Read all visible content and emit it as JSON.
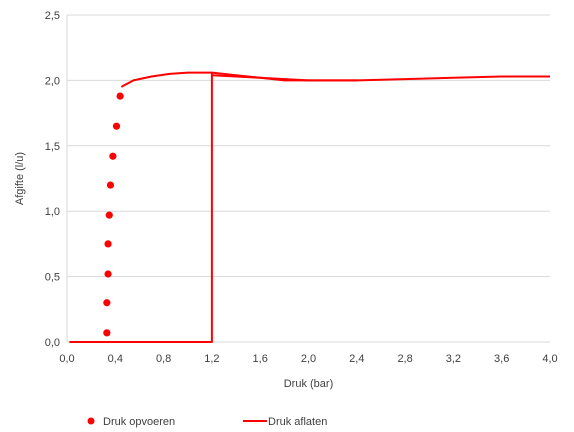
{
  "chart_data": {
    "type": "scatter",
    "xlabel": "Druk (bar)",
    "ylabel": "Afgifte (l/u)",
    "xlim": [
      0,
      4.0
    ],
    "ylim": [
      0,
      2.5
    ],
    "x_ticks": [
      "0,0",
      "0,4",
      "0,8",
      "1,2",
      "1,6",
      "2,0",
      "2,4",
      "2,8",
      "3,2",
      "3,6",
      "4,0"
    ],
    "x_tick_values": [
      0,
      0.4,
      0.8,
      1.2,
      1.6,
      2.0,
      2.4,
      2.8,
      3.2,
      3.6,
      4.0
    ],
    "y_ticks": [
      "0,0",
      "0,5",
      "1,0",
      "1,5",
      "2,0",
      "2,5"
    ],
    "y_tick_values": [
      0,
      0.5,
      1.0,
      1.5,
      2.0,
      2.5
    ],
    "grid": "horizontal",
    "legend_position": "bottom",
    "series": [
      {
        "name": "Druk opvoeren",
        "kind": "scatter",
        "color": "#ff0000",
        "points": [
          [
            0.33,
            0.07
          ],
          [
            0.33,
            0.3
          ],
          [
            0.34,
            0.52
          ],
          [
            0.34,
            0.75
          ],
          [
            0.35,
            0.97
          ],
          [
            0.36,
            1.2
          ],
          [
            0.38,
            1.42
          ],
          [
            0.41,
            1.65
          ],
          [
            0.44,
            1.88
          ]
        ]
      },
      {
        "name": "Druk aflaten",
        "kind": "line",
        "color": "#ff0000",
        "points": [
          [
            0.45,
            1.95
          ],
          [
            0.55,
            2.0
          ],
          [
            0.7,
            2.03
          ],
          [
            0.85,
            2.05
          ],
          [
            1.0,
            2.06
          ],
          [
            1.2,
            2.06
          ],
          [
            1.2,
            0.0
          ],
          [
            1.17,
            0.0
          ],
          [
            0.02,
            0.0
          ]
        ]
      },
      {
        "name": "",
        "kind": "line",
        "color": "#ff0000",
        "points": [
          [
            1.2,
            2.06
          ],
          [
            1.4,
            2.04
          ],
          [
            1.6,
            2.02
          ],
          [
            1.8,
            2.0
          ],
          [
            2.0,
            2.0
          ],
          [
            2.2,
            2.0
          ],
          [
            2.4,
            2.0
          ],
          [
            2.8,
            2.01
          ],
          [
            3.2,
            2.02
          ],
          [
            3.6,
            2.03
          ],
          [
            4.0,
            2.03
          ]
        ]
      },
      {
        "name": "",
        "kind": "line",
        "color": "#ff0000",
        "points": [
          [
            1.2,
            2.04
          ],
          [
            1.4,
            2.03
          ],
          [
            1.6,
            2.02
          ],
          [
            1.8,
            2.01
          ],
          [
            2.0,
            2.0
          ],
          [
            2.2,
            2.0
          ],
          [
            2.4,
            2.0
          ]
        ]
      }
    ]
  }
}
